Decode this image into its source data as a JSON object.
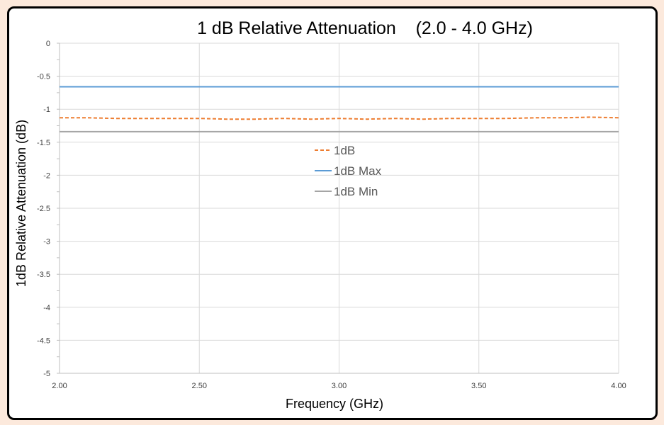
{
  "chart_data": {
    "type": "line",
    "title": "1 dB Relative Attenuation    (2.0 - 4.0 GHz)",
    "xlabel": "Frequency (GHz)",
    "ylabel": "1dB Relative Attenuation (dB)",
    "xlim": [
      2.0,
      4.0
    ],
    "ylim": [
      -5,
      0
    ],
    "xticks": [
      2.0,
      2.5,
      3.0,
      3.5,
      4.0
    ],
    "xtick_labels": [
      "2.00",
      "2.50",
      "3.00",
      "3.50",
      "4.00"
    ],
    "yticks": [
      0,
      -0.5,
      -1,
      -1.5,
      -2,
      -2.5,
      -3,
      -3.5,
      -4,
      -4.5,
      -5
    ],
    "ytick_labels": [
      "0",
      "-0.5",
      "-1",
      "-1.5",
      "-2",
      "-2.5",
      "-3",
      "-3.5",
      "-4",
      "-4.5",
      "-5"
    ],
    "grid": true,
    "legend_position": "center",
    "x": [
      2.0,
      2.1,
      2.2,
      2.3,
      2.4,
      2.5,
      2.6,
      2.7,
      2.8,
      2.9,
      3.0,
      3.1,
      3.2,
      3.3,
      3.4,
      3.5,
      3.6,
      3.7,
      3.8,
      3.9,
      4.0
    ],
    "series": [
      {
        "name": "1dB",
        "color": "#ed7d31",
        "style": "dashed",
        "values": [
          -1.13,
          -1.13,
          -1.14,
          -1.14,
          -1.14,
          -1.14,
          -1.15,
          -1.15,
          -1.14,
          -1.15,
          -1.14,
          -1.15,
          -1.14,
          -1.15,
          -1.14,
          -1.14,
          -1.14,
          -1.13,
          -1.13,
          -1.12,
          -1.13
        ]
      },
      {
        "name": "1dB Max",
        "color": "#5b9bd5",
        "style": "solid",
        "values": [
          -0.66,
          -0.66,
          -0.66,
          -0.66,
          -0.66,
          -0.66,
          -0.66,
          -0.66,
          -0.66,
          -0.66,
          -0.66,
          -0.66,
          -0.66,
          -0.66,
          -0.66,
          -0.66,
          -0.66,
          -0.66,
          -0.66,
          -0.66,
          -0.66
        ]
      },
      {
        "name": "1dB Min",
        "color": "#a5a5a5",
        "style": "solid",
        "values": [
          -1.34,
          -1.34,
          -1.34,
          -1.34,
          -1.34,
          -1.34,
          -1.34,
          -1.34,
          -1.34,
          -1.34,
          -1.34,
          -1.34,
          -1.34,
          -1.34,
          -1.34,
          -1.34,
          -1.34,
          -1.34,
          -1.34,
          -1.34,
          -1.34
        ]
      }
    ]
  }
}
